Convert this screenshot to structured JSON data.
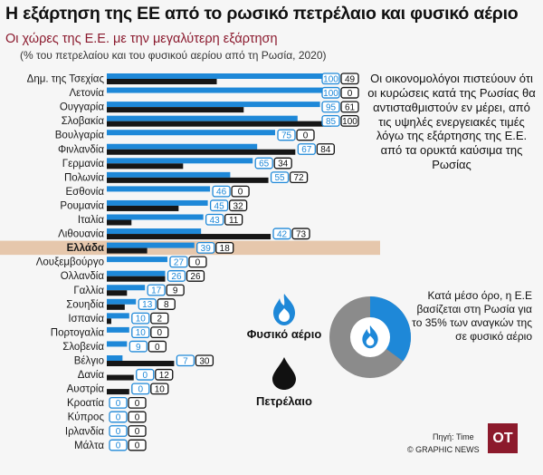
{
  "header": {
    "title": "Η εξάρτηση της ΕΕ από το ρωσικό πετρέλαιο και φυσικό αέριο",
    "subtitle": "Οι χώρες της Ε.Ε. με την μεγαλύτερη εξάρτηση",
    "note": "(% του πετρελαίου και του φυσικού αερίου από τη Ρωσία, 2020)"
  },
  "side_text": "Οι οικονομολόγοι πιστεύουν ότι οι κυρώσεις κατά της Ρωσίας θα αντισταθμιστούν εν μέρει, από τις υψηλές ενεργειακές τιμές λόγω της εξάρτησης της Ε.Ε. από τα ορυκτά καύσιμα της Ρωσίας",
  "legend": {
    "gas_label": "Φυσικό αέριο",
    "oil_label": "Πετρέλαιο",
    "gas_icon": "gas-flame-icon",
    "oil_icon": "oil-drop-icon"
  },
  "donut": {
    "value_percent": 35,
    "text": "Κατά μέσο όρο, η Ε.Ε βασίζεται στη Ρωσία για το 35% των αναγκών της σε φυσικό αέριο",
    "icon": "gas-flame-icon"
  },
  "footer": {
    "source": "Πηγή: Time",
    "credit": "© GRAPHIC NEWS",
    "logo": "OT"
  },
  "colors": {
    "gas": "#1e88d8",
    "oil": "#161616",
    "highlight": "#e6c7ac",
    "donut_rest": "#8b8b8b",
    "logo_bg": "#8c1a2c"
  },
  "chart_data": {
    "type": "bar",
    "orientation": "horizontal",
    "xlim": [
      0,
      100
    ],
    "highlight_category": "Ελλάδα",
    "categories": [
      "Δημ. της Τσεχίας",
      "Λετονία",
      "Ουγγαρία",
      "Σλοβακία",
      "Βουλγαρία",
      "Φινλανδία",
      "Γερμανία",
      "Πολωνία",
      "Εσθονία",
      "Ρουμανία",
      "Ιταλία",
      "Λιθουανία",
      "Ελλάδα",
      "Λουξεμβούργο",
      "Ολλανδία",
      "Γαλλία",
      "Σουηδία",
      "Ισπανία",
      "Πορτογαλία",
      "Σλοβενία",
      "Βέλγιο",
      "Δανία",
      "Αυστρία",
      "Κροατία",
      "Κύπρος",
      "Ιρλανδία",
      "Μάλτα"
    ],
    "series": [
      {
        "name": "Φυσικό αέριο",
        "values": [
          100,
          100,
          95,
          85,
          75,
          67,
          65,
          55,
          46,
          45,
          43,
          42,
          39,
          27,
          26,
          17,
          13,
          10,
          10,
          9,
          7,
          0,
          0,
          0,
          0,
          0,
          0
        ]
      },
      {
        "name": "Πετρέλαιο",
        "values": [
          49,
          0,
          61,
          100,
          0,
          84,
          34,
          72,
          0,
          32,
          11,
          73,
          18,
          0,
          26,
          9,
          8,
          2,
          0,
          0,
          30,
          12,
          10,
          0,
          0,
          0,
          0
        ]
      }
    ]
  }
}
